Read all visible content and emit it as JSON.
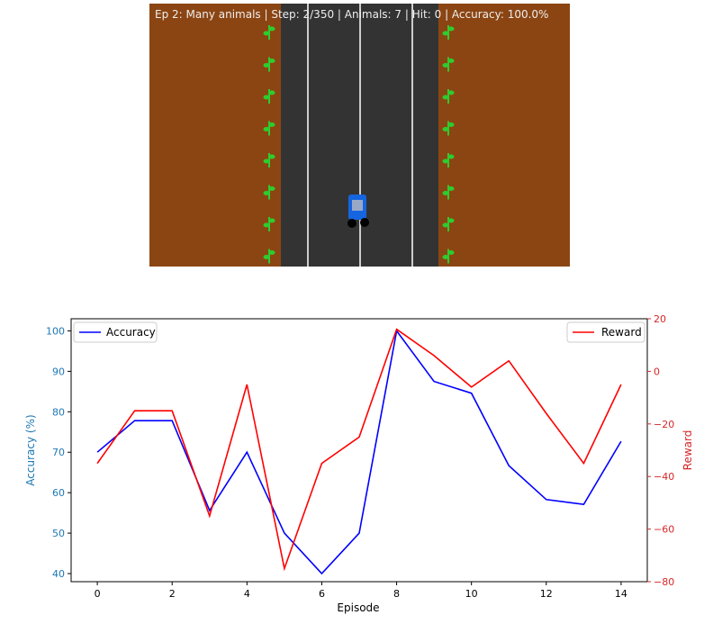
{
  "game": {
    "status_text": "Ep 2: Many animals | Step: 2/350 | Animals: 7 | Hit: 0 | Accuracy: 100.0%",
    "colors": {
      "dirt": "#8B4513",
      "road": "#333333",
      "lane_line": "#cccccc",
      "plant": "#2ecc2e",
      "car_body": "#1565e0",
      "car_window": "#aaaaaa",
      "wheel": "#000000"
    },
    "icons": [
      "plant-icon",
      "car-icon"
    ]
  },
  "chart_data": {
    "type": "line",
    "xlabel": "Episode",
    "ylabel_left": "Accuracy (%)",
    "ylabel_right": "Reward",
    "x": [
      0,
      1,
      2,
      3,
      4,
      5,
      6,
      7,
      8,
      9,
      10,
      11,
      12,
      13,
      14
    ],
    "xticks": [
      "0",
      "2",
      "4",
      "6",
      "8",
      "10",
      "12",
      "14"
    ],
    "xlim": [
      -0.7,
      14.7
    ],
    "yticks_left": [
      "40",
      "50",
      "60",
      "70",
      "80",
      "90",
      "100"
    ],
    "ylim_left": [
      38,
      103
    ],
    "yticks_right": [
      "−80",
      "−60",
      "−40",
      "−20",
      "0",
      "20"
    ],
    "ylim_right": [
      -80,
      20
    ],
    "grid": false,
    "series": [
      {
        "name": "Accuracy",
        "axis": "left",
        "color": "#0000ff",
        "values": [
          70,
          77.8,
          77.8,
          55.6,
          70,
          50,
          40,
          50,
          100,
          87.5,
          84.6,
          66.7,
          58.3,
          57.1,
          72.7
        ]
      },
      {
        "name": "Reward",
        "axis": "right",
        "color": "#ff0000",
        "values": [
          -35,
          -15,
          -15,
          -55,
          -5,
          -75,
          -35,
          -25,
          16,
          6,
          -6,
          4,
          -16,
          -35,
          -5
        ]
      }
    ],
    "legend_left_position": "upper-left",
    "legend_right_position": "upper-right",
    "axis_label_colors": {
      "left": "#1f77b4",
      "right": "#d62728"
    }
  }
}
